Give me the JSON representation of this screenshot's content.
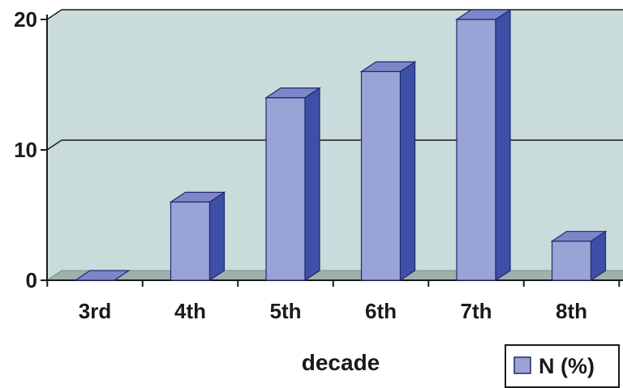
{
  "chart_data": {
    "type": "bar",
    "style": "3d-column",
    "categories": [
      "3rd",
      "4th",
      "5th",
      "6th",
      "7th",
      "8th"
    ],
    "series": [
      {
        "name": "N (%)",
        "values": [
          0,
          6,
          14,
          16,
          20,
          3
        ]
      }
    ],
    "xlabel": "decade",
    "ylabel": "",
    "ylim": [
      0,
      20
    ],
    "yticks": [
      "0",
      "10",
      "20"
    ],
    "grid": true,
    "legend_position": "bottom-right",
    "colors": {
      "bar_front": "#9aa3d6",
      "bar_top": "#7c86c8",
      "bar_side": "#3e4fa8",
      "wall": "#c9dcdb",
      "floor": "#9fb0ad",
      "edge": "#1f2a6b"
    }
  }
}
